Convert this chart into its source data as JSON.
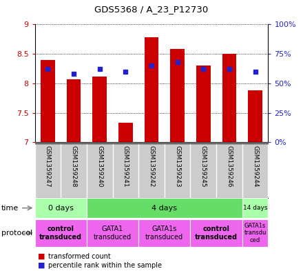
{
  "title": "GDS5368 / A_23_P12730",
  "samples": [
    "GSM1359247",
    "GSM1359248",
    "GSM1359240",
    "GSM1359241",
    "GSM1359242",
    "GSM1359243",
    "GSM1359245",
    "GSM1359246",
    "GSM1359244"
  ],
  "transformed_counts": [
    8.4,
    8.07,
    8.12,
    7.33,
    8.78,
    8.58,
    8.3,
    8.5,
    7.88
  ],
  "percentile_ranks": [
    62,
    58,
    62,
    60,
    65,
    68,
    62,
    62,
    60
  ],
  "ylim": [
    7.0,
    9.0
  ],
  "yticks": [
    7.0,
    7.5,
    8.0,
    8.5,
    9.0
  ],
  "ytick_labels": [
    "7",
    "7.5",
    "8",
    "8.5",
    "9"
  ],
  "y2ticks": [
    0,
    25,
    50,
    75,
    100
  ],
  "y2labels": [
    "0%",
    "25%",
    "50%",
    "75%",
    "100%"
  ],
  "bar_color": "#cc0000",
  "dot_color": "#2222cc",
  "bar_width": 0.55,
  "time_groups": [
    {
      "label": "0 days",
      "start": 0,
      "end": 2,
      "color": "#aaffaa"
    },
    {
      "label": "4 days",
      "start": 2,
      "end": 8,
      "color": "#66dd66"
    },
    {
      "label": "14 days",
      "start": 8,
      "end": 9,
      "color": "#aaffaa"
    }
  ],
  "protocol_groups": [
    {
      "label": "control\ntransduced",
      "start": 0,
      "end": 2,
      "color": "#ee66ee",
      "bold": true
    },
    {
      "label": "GATA1\ntransduced",
      "start": 2,
      "end": 4,
      "color": "#ee66ee",
      "bold": false
    },
    {
      "label": "GATA1s\ntransduced",
      "start": 4,
      "end": 6,
      "color": "#ee66ee",
      "bold": false
    },
    {
      "label": "control\ntransduced",
      "start": 6,
      "end": 8,
      "color": "#ee66ee",
      "bold": true
    },
    {
      "label": "GATA1s\ntransdu\nced",
      "start": 8,
      "end": 9,
      "color": "#ee66ee",
      "bold": false
    }
  ],
  "sample_bg": "#cccccc",
  "bg_color": "#ffffff",
  "label_color_left": "#cc0000",
  "label_color_right": "#2222cc"
}
